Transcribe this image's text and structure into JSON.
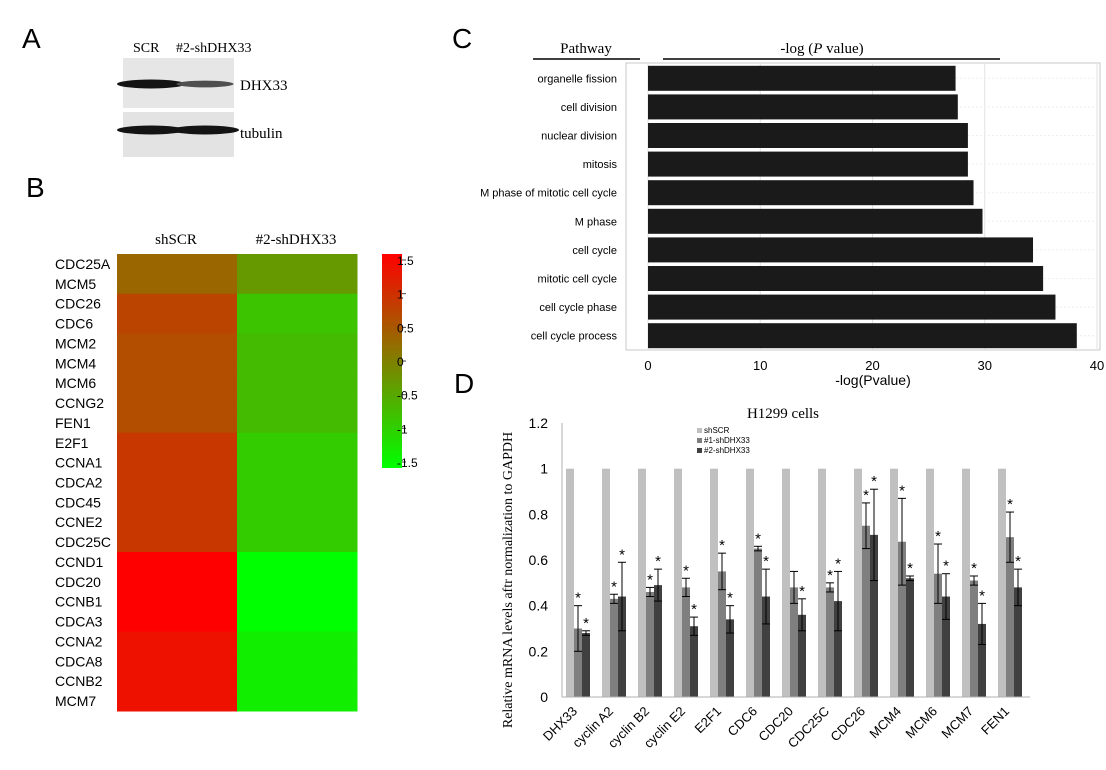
{
  "panels": {
    "a": {
      "letter": "A",
      "lanes": [
        "SCR",
        "#2-shDHX33"
      ],
      "blots": [
        "DHX33",
        "tubulin"
      ],
      "band_intensity": {
        "DHX33": [
          1.0,
          0.55
        ],
        "tubulin": [
          1.0,
          1.0
        ]
      }
    },
    "b": {
      "letter": "B",
      "chart_data": {
        "type": "heatmap",
        "columns": [
          "shSCR",
          "#2-shDHX33"
        ],
        "rows": [
          "CDC25A",
          "MCM5",
          "CDC26",
          "CDC6",
          "MCM2",
          "MCM4",
          "MCM6",
          "CCNG2",
          "FEN1",
          "E2F1",
          "CCNA1",
          "CDCA2",
          "CDC45",
          "CCNE2",
          "CDC25C",
          "CCND1",
          "CDC20",
          "CCNB1",
          "CDCA3",
          "CCNA2",
          "CDCA8",
          "CCNB2",
          "MCM7"
        ],
        "values": [
          [
            0.3,
            -0.3
          ],
          [
            0.3,
            -0.3
          ],
          [
            0.7,
            -0.8
          ],
          [
            0.7,
            -0.8
          ],
          [
            0.6,
            -0.7
          ],
          [
            0.6,
            -0.7
          ],
          [
            0.6,
            -0.7
          ],
          [
            0.6,
            -0.7
          ],
          [
            0.6,
            -0.7
          ],
          [
            0.85,
            -0.9
          ],
          [
            0.85,
            -0.9
          ],
          [
            0.85,
            -0.9
          ],
          [
            0.85,
            -0.9
          ],
          [
            0.85,
            -0.9
          ],
          [
            0.85,
            -0.9
          ],
          [
            1.5,
            -1.5
          ],
          [
            1.5,
            -1.5
          ],
          [
            1.5,
            -1.5
          ],
          [
            1.5,
            -1.5
          ],
          [
            1.3,
            -1.3
          ],
          [
            1.3,
            -1.3
          ],
          [
            1.3,
            -1.3
          ],
          [
            1.3,
            -1.3
          ]
        ],
        "colorbar": {
          "ticks": [
            "1.5",
            "1",
            "0.5",
            "0",
            "-0.5",
            "-1",
            "-1.5"
          ],
          "range": [
            -1.5,
            1.5
          ],
          "high_color": "#ff0000",
          "mid_color": "#808000",
          "low_color": "#00ff00"
        }
      }
    },
    "c": {
      "letter": "C",
      "header_left": "Pathway",
      "header_right_prefix": "-log (",
      "header_right_italic": "P",
      "header_right_suffix": " value)",
      "chart_data": {
        "type": "bar",
        "orientation": "horizontal",
        "categories": [
          "organelle fission",
          "cell division",
          "nuclear division",
          "mitosis",
          "M phase of mitotic cell cycle",
          "M phase",
          "cell cycle",
          "mitotic cell cycle",
          "cell cycle phase",
          "cell cycle process"
        ],
        "values": [
          27.4,
          27.6,
          28.5,
          28.5,
          29.0,
          29.8,
          34.3,
          35.2,
          36.3,
          38.2
        ],
        "xlabel": "-log(Pvalue)",
        "xlim": [
          0,
          40
        ],
        "xticks": [
          "0",
          "10",
          "20",
          "30",
          "40"
        ],
        "bar_color": "#1a1a1a"
      }
    },
    "d": {
      "letter": "D",
      "chart_data": {
        "type": "bar",
        "title": "H1299 cells",
        "ylabel": "Relative mRNA levels aftr normalization to GAPDH",
        "ylim": [
          0,
          1.2
        ],
        "yticks": [
          "0",
          "0.2",
          "0.4",
          "0.6",
          "0.8",
          "1",
          "1.2"
        ],
        "categories": [
          "DHX33",
          "cyclin A2",
          "cyclin B2",
          "cyclin E2",
          "E2F1",
          "CDC6",
          "CDC20",
          "CDC25C",
          "CDC26",
          "MCM4",
          "MCM6",
          "MCM7",
          "FEN1"
        ],
        "series": [
          {
            "name": "shSCR",
            "color": "#c0c0c0",
            "values": [
              1,
              1,
              1,
              1,
              1,
              1,
              1,
              1,
              1,
              1,
              1,
              1,
              1
            ],
            "errors": [
              0,
              0,
              0,
              0,
              0,
              0,
              0,
              0,
              0,
              0,
              0,
              0,
              0
            ],
            "stars": [
              false,
              false,
              false,
              false,
              false,
              false,
              false,
              false,
              false,
              false,
              false,
              false,
              false
            ]
          },
          {
            "name": "#1-shDHX33",
            "color": "#7f7f7f",
            "values": [
              0.3,
              0.43,
              0.46,
              0.48,
              0.55,
              0.65,
              0.48,
              0.48,
              0.75,
              0.68,
              0.54,
              0.51,
              0.7
            ],
            "errors": [
              0.1,
              0.02,
              0.02,
              0.04,
              0.08,
              0.01,
              0.07,
              0.02,
              0.1,
              0.19,
              0.13,
              0.02,
              0.11
            ],
            "stars": [
              true,
              true,
              true,
              true,
              true,
              true,
              false,
              true,
              true,
              true,
              true,
              true,
              true
            ]
          },
          {
            "name": "#2-shDHX33",
            "color": "#404040",
            "values": [
              0.28,
              0.44,
              0.49,
              0.31,
              0.34,
              0.44,
              0.36,
              0.42,
              0.71,
              0.52,
              0.44,
              0.32,
              0.48
            ],
            "errors": [
              0.01,
              0.15,
              0.07,
              0.04,
              0.06,
              0.12,
              0.07,
              0.13,
              0.2,
              0.01,
              0.1,
              0.09,
              0.08
            ],
            "stars": [
              true,
              true,
              true,
              true,
              true,
              true,
              true,
              true,
              true,
              true,
              true,
              true,
              true
            ]
          }
        ],
        "significance_mark": "*",
        "legend_position": "top-center"
      }
    }
  }
}
